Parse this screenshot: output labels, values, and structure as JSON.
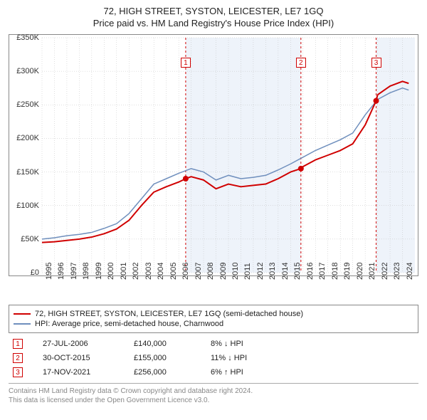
{
  "title_line1": "72, HIGH STREET, SYSTON, LEICESTER, LE7 1GQ",
  "title_line2": "Price paid vs. HM Land Registry's House Price Index (HPI)",
  "chart": {
    "type": "line",
    "background_color": "#ffffff",
    "grid_color": "#bfbfbf",
    "grid_style": "dotted",
    "border_color": "#888888",
    "x_years": [
      1995,
      1996,
      1997,
      1998,
      1999,
      2000,
      2001,
      2002,
      2003,
      2004,
      2005,
      2006,
      2007,
      2008,
      2009,
      2010,
      2011,
      2012,
      2013,
      2014,
      2015,
      2016,
      2017,
      2018,
      2019,
      2020,
      2021,
      2022,
      2023,
      2024
    ],
    "xlim": [
      1995,
      2025
    ],
    "ylim": [
      0,
      350000
    ],
    "ytick_step": 50000,
    "ytick_labels": [
      "£0",
      "£50K",
      "£100K",
      "£150K",
      "£200K",
      "£250K",
      "£300K",
      "£350K"
    ],
    "series": [
      {
        "name": "72, HIGH STREET, SYSTON, LEICESTER, LE7 1GQ (semi-detached house)",
        "color": "#d00000",
        "line_width": 2,
        "values_by_year": [
          [
            1995,
            45000
          ],
          [
            1996,
            46000
          ],
          [
            1997,
            48000
          ],
          [
            1998,
            50000
          ],
          [
            1999,
            53000
          ],
          [
            2000,
            58000
          ],
          [
            2001,
            65000
          ],
          [
            2002,
            78000
          ],
          [
            2003,
            100000
          ],
          [
            2004,
            120000
          ],
          [
            2005,
            128000
          ],
          [
            2006,
            135000
          ],
          [
            2006.56,
            140000
          ],
          [
            2007,
            143000
          ],
          [
            2008,
            138000
          ],
          [
            2009,
            125000
          ],
          [
            2010,
            132000
          ],
          [
            2011,
            128000
          ],
          [
            2012,
            130000
          ],
          [
            2013,
            132000
          ],
          [
            2014,
            140000
          ],
          [
            2015,
            150000
          ],
          [
            2015.83,
            155000
          ],
          [
            2016,
            158000
          ],
          [
            2017,
            168000
          ],
          [
            2018,
            175000
          ],
          [
            2019,
            182000
          ],
          [
            2020,
            192000
          ],
          [
            2021,
            220000
          ],
          [
            2021.88,
            256000
          ],
          [
            2022,
            265000
          ],
          [
            2023,
            278000
          ],
          [
            2024,
            285000
          ],
          [
            2024.5,
            282000
          ]
        ]
      },
      {
        "name": "HPI: Average price, semi-detached house, Charnwood",
        "color": "#6f8fbd",
        "line_width": 1.5,
        "values_by_year": [
          [
            1995,
            50000
          ],
          [
            1996,
            52000
          ],
          [
            1997,
            55000
          ],
          [
            1998,
            57000
          ],
          [
            1999,
            60000
          ],
          [
            2000,
            66000
          ],
          [
            2001,
            73000
          ],
          [
            2002,
            88000
          ],
          [
            2003,
            110000
          ],
          [
            2004,
            132000
          ],
          [
            2005,
            140000
          ],
          [
            2006,
            148000
          ],
          [
            2007,
            155000
          ],
          [
            2008,
            150000
          ],
          [
            2009,
            138000
          ],
          [
            2010,
            145000
          ],
          [
            2011,
            140000
          ],
          [
            2012,
            142000
          ],
          [
            2013,
            145000
          ],
          [
            2014,
            153000
          ],
          [
            2015,
            162000
          ],
          [
            2016,
            172000
          ],
          [
            2017,
            182000
          ],
          [
            2018,
            190000
          ],
          [
            2019,
            198000
          ],
          [
            2020,
            208000
          ],
          [
            2021,
            235000
          ],
          [
            2022,
            258000
          ],
          [
            2023,
            268000
          ],
          [
            2024,
            275000
          ],
          [
            2024.5,
            272000
          ]
        ]
      }
    ],
    "shaded_bands": [
      {
        "from_year": 2006.56,
        "to_year": 2015.83,
        "color": "#eef3fa"
      },
      {
        "from_year": 2021.88,
        "to_year": 2025,
        "color": "#eef3fa"
      }
    ],
    "event_lines": [
      {
        "year": 2006.56,
        "color": "#d00000",
        "style": "dashed",
        "label": "1",
        "label_top_offset": 28
      },
      {
        "year": 2015.83,
        "color": "#d00000",
        "style": "dashed",
        "label": "2",
        "label_top_offset": 28
      },
      {
        "year": 2021.88,
        "color": "#d00000",
        "style": "dashed",
        "label": "3",
        "label_top_offset": 28
      }
    ],
    "event_points": [
      {
        "year": 2006.56,
        "value": 140000,
        "color": "#d00000",
        "radius": 4
      },
      {
        "year": 2015.83,
        "value": 155000,
        "color": "#d00000",
        "radius": 4
      },
      {
        "year": 2021.88,
        "value": 256000,
        "color": "#d00000",
        "radius": 4
      }
    ]
  },
  "legend": {
    "rows": [
      {
        "color": "#d00000",
        "label": "72, HIGH STREET, SYSTON, LEICESTER, LE7 1GQ (semi-detached house)"
      },
      {
        "color": "#6f8fbd",
        "label": "HPI: Average price, semi-detached house, Charnwood"
      }
    ]
  },
  "events_table": {
    "rows": [
      {
        "n": "1",
        "date": "27-JUL-2006",
        "price": "£140,000",
        "hpi": "8% ↓ HPI"
      },
      {
        "n": "2",
        "date": "30-OCT-2015",
        "price": "£155,000",
        "hpi": "11% ↓ HPI"
      },
      {
        "n": "3",
        "date": "17-NOV-2021",
        "price": "£256,000",
        "hpi": "6% ↑ HPI"
      }
    ]
  },
  "footer_line1": "Contains HM Land Registry data © Crown copyright and database right 2024.",
  "footer_line2": "This data is licensed under the Open Government Licence v3.0."
}
